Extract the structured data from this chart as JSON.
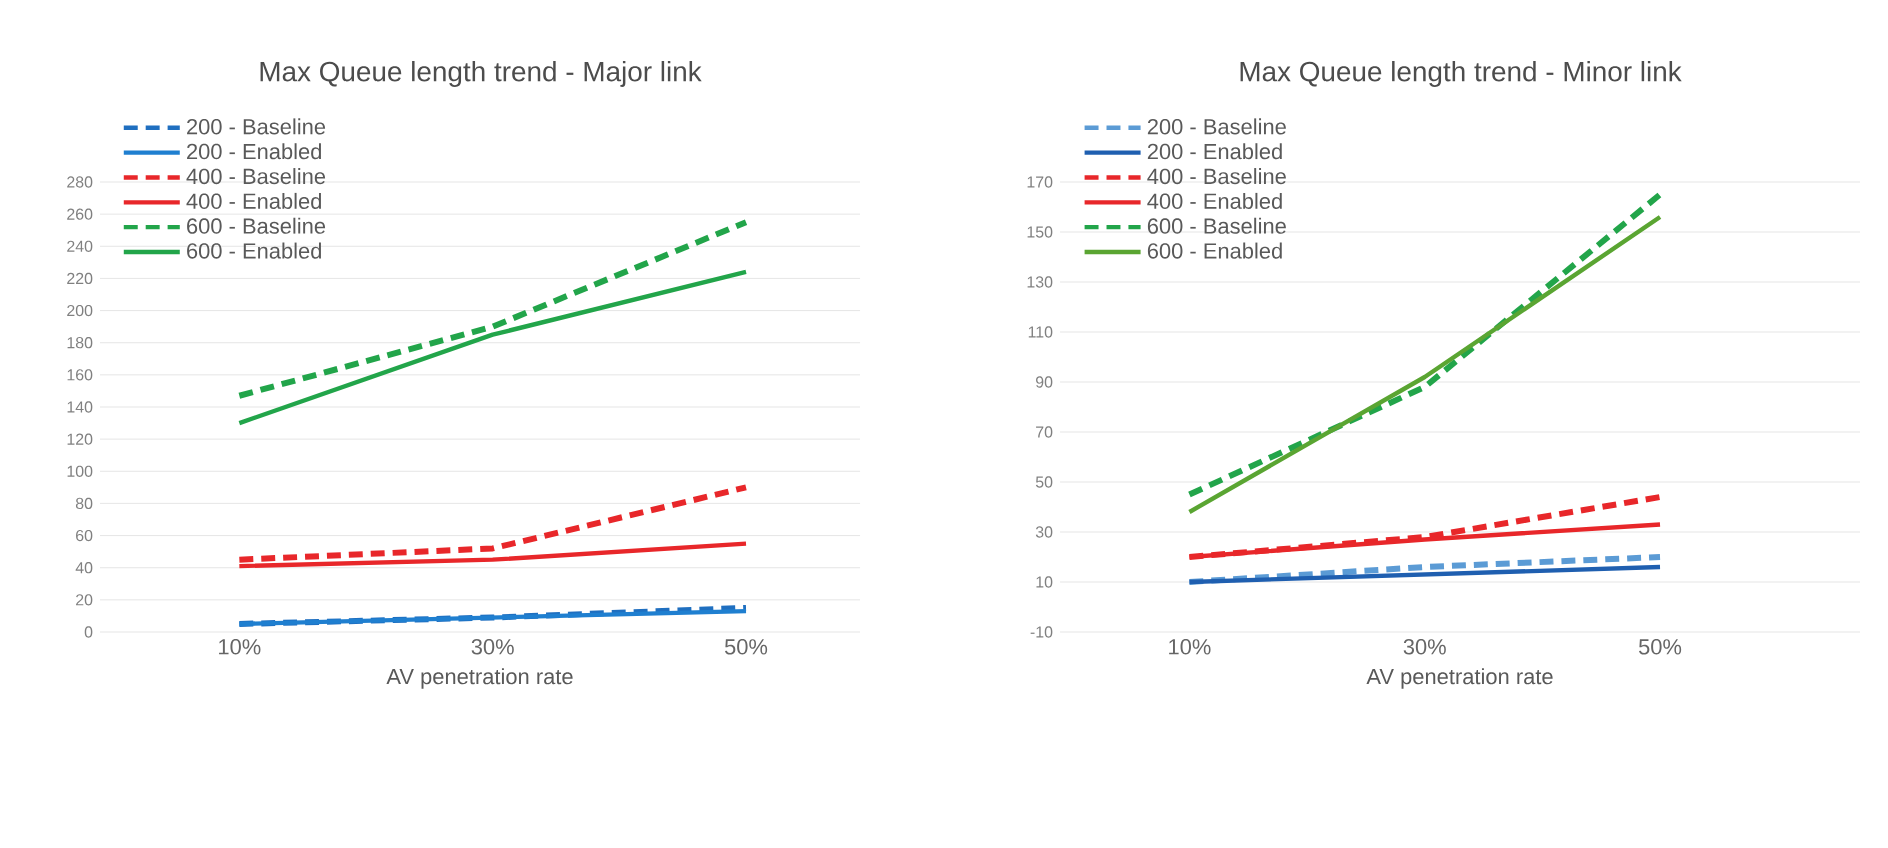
{
  "chart_data": [
    {
      "type": "line",
      "title": "Max Queue length trend - Major link",
      "xlabel": "AV penetration rate",
      "categories": [
        "10%",
        "30%",
        "50%"
      ],
      "ylim": [
        0,
        280
      ],
      "yticks": [
        0,
        20,
        40,
        60,
        80,
        100,
        120,
        140,
        160,
        180,
        200,
        220,
        240,
        260,
        280
      ],
      "grid": "y",
      "legend": "top left",
      "marker": "none",
      "series": [
        {
          "name": "200 - Baseline",
          "color": "#1f6fc0",
          "line_style": "dashed",
          "values": [
            5,
            9,
            15
          ]
        },
        {
          "name": "200 - Enabled",
          "color": "#1f7fd0",
          "line_style": "solid",
          "values": [
            5,
            9,
            13
          ]
        },
        {
          "name": "400 - Baseline",
          "color": "#e8272a",
          "line_style": "dashed",
          "values": [
            45,
            52,
            90
          ]
        },
        {
          "name": "400 - Enabled",
          "color": "#e8272a",
          "line_style": "solid",
          "values": [
            41,
            45,
            55
          ]
        },
        {
          "name": "600 - Baseline",
          "color": "#22a54a",
          "line_style": "dashed",
          "values": [
            147,
            190,
            255
          ]
        },
        {
          "name": "600 - Enabled",
          "color": "#22a54a",
          "line_style": "solid",
          "values": [
            130,
            185,
            224
          ]
        }
      ]
    },
    {
      "type": "line",
      "title": "Max Queue length trend - Minor link",
      "xlabel": "AV penetration rate",
      "categories": [
        "10%",
        "30%",
        "50%"
      ],
      "ylim": [
        -10,
        170
      ],
      "yticks": [
        -10,
        10,
        30,
        50,
        70,
        90,
        110,
        130,
        150,
        170
      ],
      "grid": "y",
      "legend": "top left",
      "marker": "none",
      "series": [
        {
          "name": "200 - Baseline",
          "color": "#5b9bd5",
          "line_style": "dashed",
          "values": [
            10,
            16,
            20
          ]
        },
        {
          "name": "200 - Enabled",
          "color": "#1f5fb0",
          "line_style": "solid",
          "values": [
            10,
            13,
            16
          ]
        },
        {
          "name": "400 - Baseline",
          "color": "#e8272a",
          "line_style": "dashed",
          "values": [
            20,
            28,
            44
          ]
        },
        {
          "name": "400 - Enabled",
          "color": "#e8272a",
          "line_style": "solid",
          "values": [
            20,
            27,
            33
          ]
        },
        {
          "name": "600 - Baseline",
          "color": "#22a54a",
          "line_style": "dashed",
          "values": [
            45,
            88,
            165
          ]
        },
        {
          "name": "600 - Enabled",
          "color": "#5aa532",
          "line_style": "solid",
          "values": [
            38,
            92,
            156
          ]
        }
      ]
    }
  ]
}
